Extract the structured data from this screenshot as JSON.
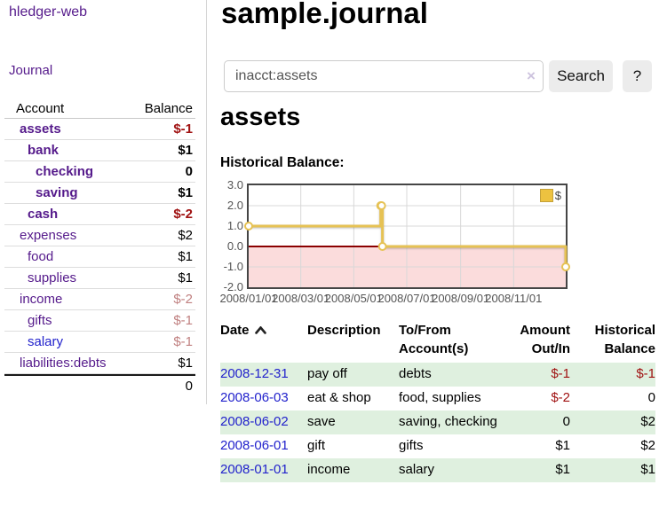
{
  "app": {
    "brand": "hledger-web",
    "nav_journal": "Journal"
  },
  "sidebar": {
    "header": {
      "account": "Account",
      "balance": "Balance"
    },
    "accounts": [
      {
        "name": "assets",
        "level": 1,
        "bold": true,
        "name_color": "purple",
        "balance": "$-1",
        "balance_class": "neg"
      },
      {
        "name": "bank",
        "level": 2,
        "bold": true,
        "name_color": "purple",
        "balance": "$1",
        "balance_class": ""
      },
      {
        "name": "checking",
        "level": 3,
        "bold": true,
        "name_color": "purple",
        "balance": "0",
        "balance_class": ""
      },
      {
        "name": "saving",
        "level": 3,
        "bold": true,
        "name_color": "purple",
        "balance": "$1",
        "balance_class": ""
      },
      {
        "name": "cash",
        "level": 2,
        "bold": true,
        "name_color": "purple",
        "balance": "$-2",
        "balance_class": "neg"
      },
      {
        "name": "expenses",
        "level": 1,
        "bold": false,
        "name_color": "purple",
        "balance": "$2",
        "balance_class": ""
      },
      {
        "name": "food",
        "level": 2,
        "bold": false,
        "name_color": "purple",
        "balance": "$1",
        "balance_class": ""
      },
      {
        "name": "supplies",
        "level": 2,
        "bold": false,
        "name_color": "purple",
        "balance": "$1",
        "balance_class": ""
      },
      {
        "name": "income",
        "level": 1,
        "bold": false,
        "name_color": "purple",
        "balance": "$-2",
        "balance_class": "negsoft"
      },
      {
        "name": "gifts",
        "level": 2,
        "bold": false,
        "name_color": "purple",
        "balance": "$-1",
        "balance_class": "negsoft"
      },
      {
        "name": "salary",
        "level": 2,
        "bold": false,
        "name_color": "blue",
        "balance": "$-1",
        "balance_class": "negsoft"
      },
      {
        "name": "liabilities:debts",
        "level": 1,
        "bold": false,
        "name_color": "purple",
        "balance": "$1",
        "balance_class": ""
      }
    ],
    "total": "0"
  },
  "main": {
    "title": "sample.journal",
    "search": {
      "value": "inacct:assets",
      "clear_icon": "×",
      "button_label": "Search",
      "help_label": "?"
    },
    "account_heading": "assets",
    "chart_label": "Historical Balance:"
  },
  "chart_data": {
    "type": "line",
    "title": "Historical Balance:",
    "step": true,
    "series": [
      {
        "name": "$",
        "color": "#e6c254",
        "points": [
          [
            "2008-01-01",
            1
          ],
          [
            "2008-06-01",
            2
          ],
          [
            "2008-06-02",
            2
          ],
          [
            "2008-06-03",
            0
          ],
          [
            "2008-12-31",
            -1
          ]
        ]
      }
    ],
    "xlim": [
      "2008-01-01",
      "2008-12-31"
    ],
    "ylim": [
      -2,
      3
    ],
    "y_ticks": [
      3,
      2,
      1,
      0,
      -1,
      -2
    ],
    "x_ticks": [
      "2008/01/01",
      "2008/03/01",
      "2008/05/01",
      "2008/07/01",
      "2008/09/01",
      "2008/11/01"
    ],
    "grid": true,
    "gridline_color": "#d8d8d8",
    "negative_region_color": "#fbdcdc",
    "zero_line_color": "#8b0000",
    "legend_position": "top-right",
    "legend": [
      "$"
    ]
  },
  "register": {
    "columns": [
      "Date",
      "Description",
      "To/From Account(s)",
      "Amount Out/In",
      "Historical Balance"
    ],
    "rows": [
      {
        "date": "2008-12-31",
        "description": "pay off",
        "accounts": "debts",
        "amount": "$-1",
        "amount_neg": true,
        "balance": "$-1",
        "balance_neg": true
      },
      {
        "date": "2008-06-03",
        "description": "eat & shop",
        "accounts": "food, supplies",
        "amount": "$-2",
        "amount_neg": true,
        "balance": "0",
        "balance_neg": false
      },
      {
        "date": "2008-06-02",
        "description": "save",
        "accounts": "saving, checking",
        "amount": "0",
        "amount_neg": false,
        "balance": "$2",
        "balance_neg": false
      },
      {
        "date": "2008-06-01",
        "description": "gift",
        "accounts": "gifts",
        "amount": "$1",
        "amount_neg": false,
        "balance": "$2",
        "balance_neg": false
      },
      {
        "date": "2008-01-01",
        "description": "income",
        "accounts": "salary",
        "amount": "$1",
        "amount_neg": false,
        "balance": "$1",
        "balance_neg": false
      }
    ]
  },
  "colors": {
    "link_purple": "#551a8b",
    "link_blue": "#2222cc",
    "negative": "#a01212",
    "negative_soft": "#c08080",
    "row_green": "#dff0df",
    "series_gold": "#edc240"
  }
}
